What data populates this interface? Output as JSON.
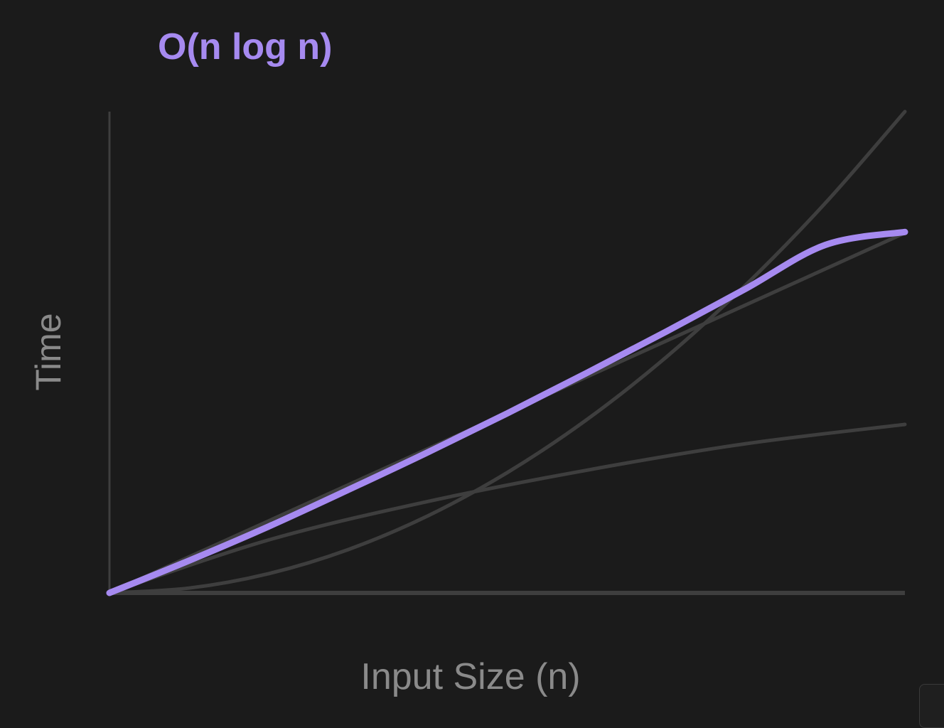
{
  "colors": {
    "background": "#1b1b1b",
    "highlight": "#a68af0",
    "muted_curve": "#3e3e3e",
    "axis": "#3e3e3e",
    "label": "#8a8a8a"
  },
  "chart_data": {
    "type": "line",
    "title": "O(n log n)",
    "xlabel": "Input Size (n)",
    "ylabel": "Time",
    "xlim": [
      0,
      1
    ],
    "ylim": [
      0,
      1
    ],
    "grid": false,
    "legend": "none",
    "axes_ticks": false,
    "highlighted_series": "n log n",
    "series": [
      {
        "id": "n log n",
        "highlighted": true,
        "x": [
          0,
          0.1,
          0.2,
          0.3,
          0.4,
          0.5,
          0.6,
          0.7,
          0.8,
          0.9,
          1.0
        ],
        "y": [
          0,
          0.067,
          0.138,
          0.214,
          0.292,
          0.373,
          0.457,
          0.543,
          0.632,
          0.723,
          0.75
        ]
      },
      {
        "id": "linear",
        "highlighted": false,
        "x": [
          0,
          1
        ],
        "y": [
          0,
          0.748
        ]
      },
      {
        "id": "log",
        "highlighted": false,
        "x": [
          0,
          0.2,
          0.4,
          0.6,
          0.8,
          1.0
        ],
        "y": [
          0,
          0.11,
          0.19,
          0.255,
          0.31,
          0.35
        ]
      },
      {
        "id": "quadratic",
        "highlighted": false,
        "x": [
          0,
          0.1,
          0.2,
          0.3,
          0.4,
          0.5,
          0.6,
          0.7,
          0.8,
          0.9,
          1.0
        ],
        "y": [
          0,
          0.01,
          0.04,
          0.09,
          0.16,
          0.25,
          0.36,
          0.49,
          0.64,
          0.81,
          1.0
        ]
      }
    ]
  }
}
